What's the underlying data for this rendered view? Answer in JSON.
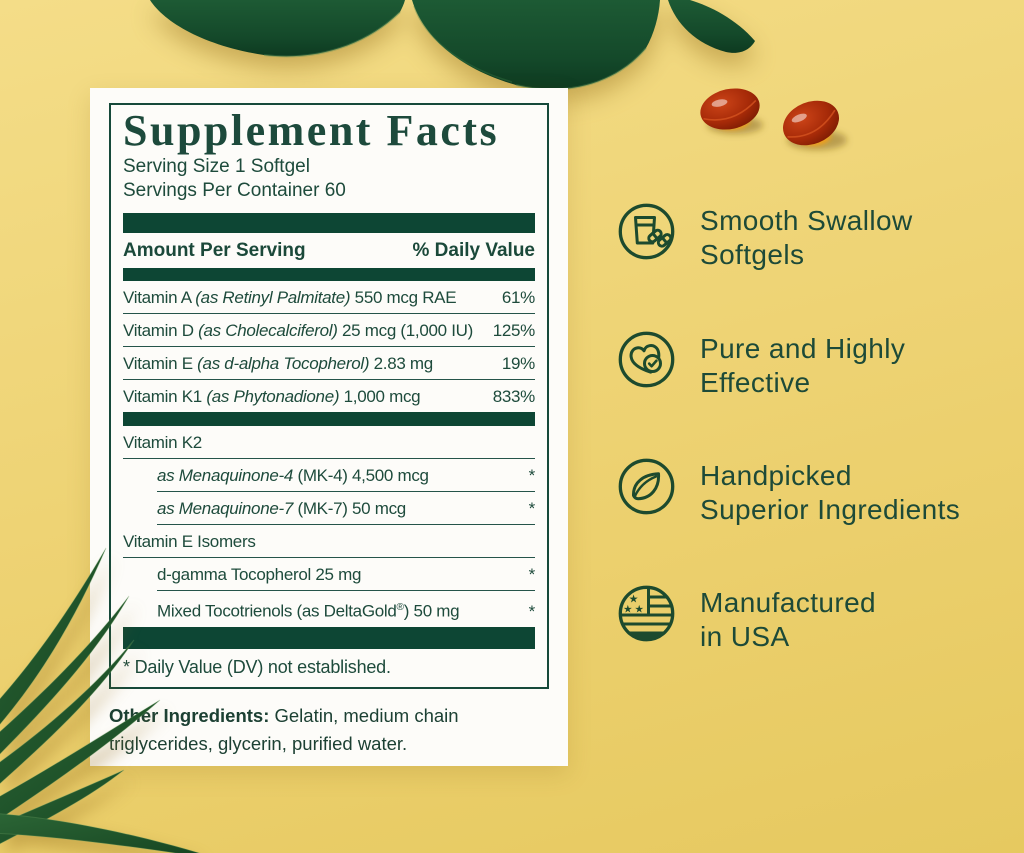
{
  "panel": {
    "title": "Supplement Facts",
    "serving_size": "Serving Size 1 Softgel",
    "servings_per_container": "Servings Per Container 60",
    "columns": {
      "amount": "Amount Per Serving",
      "dv": "% Daily Value"
    },
    "rows": [
      {
        "parts": [
          {
            "t": "Vitamin A "
          },
          {
            "t": "(as Retinyl Palmitate)",
            "i": true
          },
          {
            "t": " 550 mcg RAE"
          }
        ],
        "dv": "61%"
      },
      {
        "parts": [
          {
            "t": "Vitamin D "
          },
          {
            "t": "(as Cholecalciferol)",
            "i": true
          },
          {
            "t": " 25 mcg (1,000 IU)"
          }
        ],
        "dv": "125%"
      },
      {
        "parts": [
          {
            "t": "Vitamin E "
          },
          {
            "t": "(as d-alpha Tocopherol)",
            "i": true
          },
          {
            "t": " 2.83 mg"
          }
        ],
        "dv": "19%"
      },
      {
        "parts": [
          {
            "t": "Vitamin K1 "
          },
          {
            "t": "(as Phytonadione)",
            "i": true
          },
          {
            "t": " 1,000 mcg"
          }
        ],
        "dv": "833%",
        "barAfter": "h14"
      },
      {
        "parts": [
          {
            "t": "Vitamin K2"
          }
        ],
        "dv": ""
      },
      {
        "parts": [
          {
            "t": "as Menaquinone-4",
            "i": true
          },
          {
            "t": " (MK-4) 4,500 mcg"
          }
        ],
        "dv": "*",
        "indent": true
      },
      {
        "parts": [
          {
            "t": "as Menaquinone-7",
            "i": true
          },
          {
            "t": " (MK-7) 50 mcg"
          }
        ],
        "dv": "*",
        "indent": true
      },
      {
        "parts": [
          {
            "t": "Vitamin E Isomers"
          }
        ],
        "dv": ""
      },
      {
        "parts": [
          {
            "t": "d-gamma Tocopherol 25 mg"
          }
        ],
        "dv": "*",
        "indent": true
      },
      {
        "parts": [
          {
            "t": "Mixed Tocotrienols (as DeltaGold"
          },
          {
            "t": "®",
            "sup": true
          },
          {
            "t": ") 50 mg"
          }
        ],
        "dv": "*",
        "indent": true,
        "barAfter": "h22"
      }
    ],
    "footnote": "* Daily Value (DV) not established.",
    "other_ingredients_label": "Other Ingredients:",
    "other_ingredients_text": " Gelatin, medium chain triglycerides, glycerin, purified water."
  },
  "features": [
    {
      "icon": "softgels-glass-icon",
      "lines": [
        "Smooth Swallow",
        "Softgels"
      ]
    },
    {
      "icon": "heart-check-icon",
      "lines": [
        "Pure and Highly",
        "Effective"
      ]
    },
    {
      "icon": "leaf-icon",
      "lines": [
        "Handpicked",
        "Superior Ingredients"
      ]
    },
    {
      "icon": "usa-flag-icon",
      "lines": [
        "Manufactured",
        "in USA"
      ]
    }
  ],
  "colors": {
    "background_yellow": "#eed373",
    "label_green": "#1e4b3c",
    "bar_green": "#0d4634",
    "leaf_green": "#185031",
    "softgel_red": "#a62a08",
    "softgel_amber": "#f0a01f"
  }
}
